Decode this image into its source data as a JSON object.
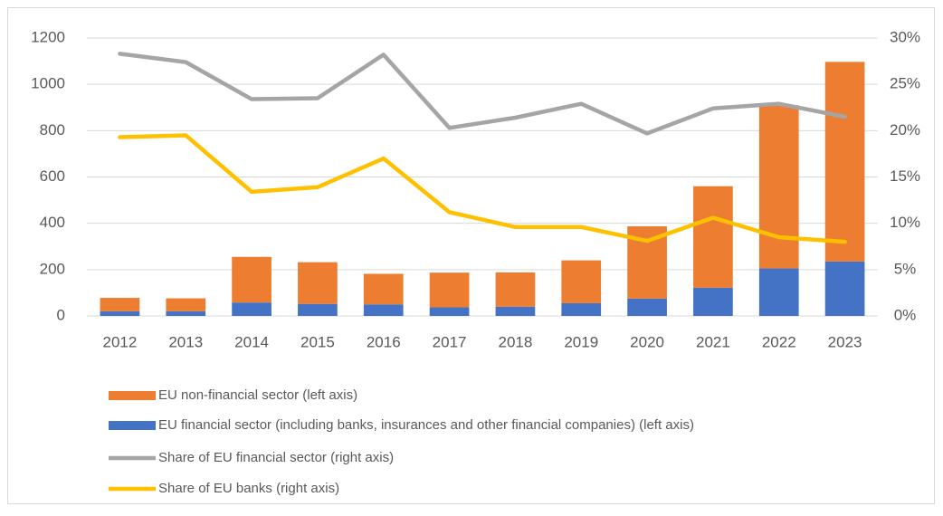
{
  "chart_data": {
    "type": "bar-line",
    "categories": [
      "2012",
      "2013",
      "2014",
      "2015",
      "2016",
      "2017",
      "2018",
      "2019",
      "2020",
      "2021",
      "2022",
      "2023"
    ],
    "series": [
      {
        "name": "EU non-financial sector (left axis)",
        "type": "bar",
        "color": "#ed7d31",
        "values": [
          58,
          56,
          197,
          180,
          132,
          150,
          148,
          185,
          312,
          438,
          705,
          862
        ]
      },
      {
        "name": "EU financial sector (including banks, insurances and other financial companies) (left axis)",
        "type": "bar",
        "color": "#4472c4",
        "values": [
          20,
          20,
          58,
          52,
          50,
          37,
          40,
          55,
          75,
          122,
          205,
          235
        ]
      },
      {
        "name": "Share of EU financial sector (right axis)",
        "type": "line",
        "axis": "y2",
        "color": "#a5a5a5",
        "values": [
          28.3,
          27.4,
          23.4,
          23.5,
          28.2,
          20.3,
          21.4,
          22.9,
          19.7,
          22.4,
          22.9,
          21.5
        ]
      },
      {
        "name": "Share of EU banks (right axis)",
        "type": "line",
        "axis": "y2",
        "color": "#ffc000",
        "values": [
          19.3,
          19.5,
          13.4,
          13.9,
          17.0,
          11.2,
          9.6,
          9.6,
          8.1,
          10.6,
          8.5,
          8.0
        ]
      }
    ],
    "ylim": [
      0,
      1200
    ],
    "yticks": [
      0,
      200,
      400,
      600,
      800,
      1000,
      1200
    ],
    "y2lim": [
      0,
      30
    ],
    "y2ticks": [
      {
        "value": 0,
        "label": "0%"
      },
      {
        "value": 5,
        "label": "5%"
      },
      {
        "value": 10,
        "label": "10%"
      },
      {
        "value": 15,
        "label": "15%"
      },
      {
        "value": 20,
        "label": "20%"
      },
      {
        "value": 25,
        "label": "25%"
      },
      {
        "value": 30,
        "label": "30%"
      }
    ],
    "grid": true
  }
}
